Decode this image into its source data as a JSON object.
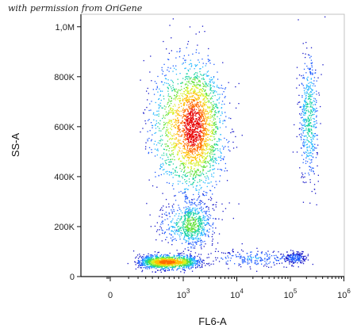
{
  "credit_text": "with permission from OriGene",
  "chart_data": {
    "type": "scatter",
    "style": "density-colored dot plot (blue→cyan→green→yellow→red)",
    "xlabel": "FL6-A",
    "ylabel": "SS-A",
    "x_scale": "biexponential",
    "xlim": [
      -300,
      1000000
    ],
    "ylim": [
      0,
      1050000
    ],
    "x_ticks": [
      {
        "value": 0,
        "label": "0"
      },
      {
        "value": 1000,
        "base": "10",
        "exp": "3"
      },
      {
        "value": 10000,
        "base": "10",
        "exp": "4"
      },
      {
        "value": 100000,
        "base": "10",
        "exp": "5"
      },
      {
        "value": 1000000,
        "base": "10",
        "exp": "6"
      }
    ],
    "y_ticks": [
      {
        "value": 0,
        "label": "0"
      },
      {
        "value": 200000,
        "label": "200K"
      },
      {
        "value": 400000,
        "label": "400K"
      },
      {
        "value": 600000,
        "label": "600K"
      },
      {
        "value": 800000,
        "label": "800K"
      },
      {
        "value": 1000000,
        "label": "1,0M"
      }
    ],
    "populations": [
      {
        "x_center": 650,
        "y_center": 60000,
        "x_log_sd": 0.22,
        "y_sd": 14000,
        "points": 1400
      },
      {
        "x_center": 1500,
        "y_center": 600000,
        "x_log_sd": 0.28,
        "y_sd": 130000,
        "points": 2400
      },
      {
        "x_center": 1400,
        "y_center": 210000,
        "x_log_sd": 0.2,
        "y_sd": 45000,
        "points": 700
      },
      {
        "x_center": 220000,
        "y_center": 640000,
        "x_log_sd": 0.09,
        "y_sd": 130000,
        "points": 500
      },
      {
        "x_center": 120000,
        "y_center": 75000,
        "x_log_sd": 0.1,
        "y_sd": 12000,
        "points": 180
      },
      {
        "x_center": 20000,
        "y_center": 75000,
        "x_log_sd": 0.45,
        "y_sd": 18000,
        "points": 220
      }
    ],
    "grid": false,
    "legend": "none"
  }
}
